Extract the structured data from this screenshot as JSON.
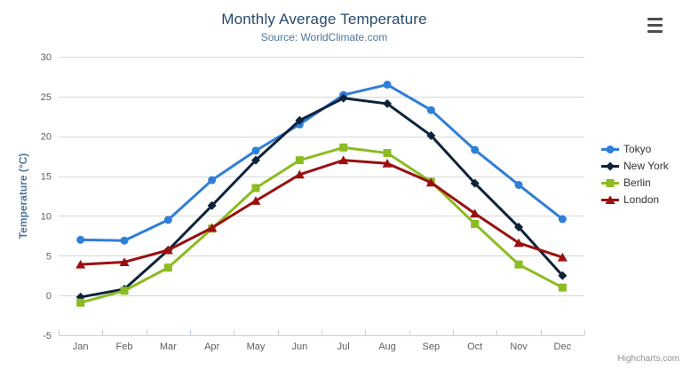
{
  "credits": {
    "label": "Highcharts.com"
  },
  "export_menu": {
    "icon": "hamburger-icon"
  },
  "style": {
    "title_color": "#274b6d",
    "subtitle_color": "#4d759e",
    "axis_title_color": "#4d759e",
    "axis_label_color": "#606060",
    "legend_text_color": "#333333",
    "gridline_color": "#d8d8d8",
    "axis_line_color": "#c0d0e0"
  },
  "chart_data": {
    "type": "line",
    "title": "Monthly Average Temperature",
    "subtitle": "Source: WorldClimate.com",
    "xlabel": "",
    "ylabel": "Temperature (°C)",
    "ylim": [
      -5,
      30
    ],
    "ytick_labels": [
      "-5",
      "0",
      "5",
      "10",
      "15",
      "20",
      "25",
      "30"
    ],
    "grid": true,
    "legend_position": "right",
    "categories": [
      "Jan",
      "Feb",
      "Mar",
      "Apr",
      "May",
      "Jun",
      "Jul",
      "Aug",
      "Sep",
      "Oct",
      "Nov",
      "Dec"
    ],
    "series": [
      {
        "name": "Tokyo",
        "color": "#2f7ed8",
        "marker": "circle",
        "values": [
          7.0,
          6.9,
          9.5,
          14.5,
          18.2,
          21.5,
          25.2,
          26.5,
          23.3,
          18.3,
          13.9,
          9.6
        ]
      },
      {
        "name": "New York",
        "color": "#0d233a",
        "marker": "diamond",
        "values": [
          -0.2,
          0.8,
          5.7,
          11.3,
          17.0,
          22.0,
          24.8,
          24.1,
          20.1,
          14.1,
          8.6,
          2.5
        ]
      },
      {
        "name": "Berlin",
        "color": "#8bbc21",
        "marker": "square",
        "values": [
          -0.9,
          0.6,
          3.5,
          8.4,
          13.5,
          17.0,
          18.6,
          17.9,
          14.3,
          9.0,
          3.9,
          1.0
        ]
      },
      {
        "name": "London",
        "color": "#9a1010",
        "marker": "triangle",
        "values": [
          3.9,
          4.2,
          5.7,
          8.5,
          11.9,
          15.2,
          17.0,
          16.6,
          14.2,
          10.3,
          6.6,
          4.8
        ]
      }
    ]
  }
}
